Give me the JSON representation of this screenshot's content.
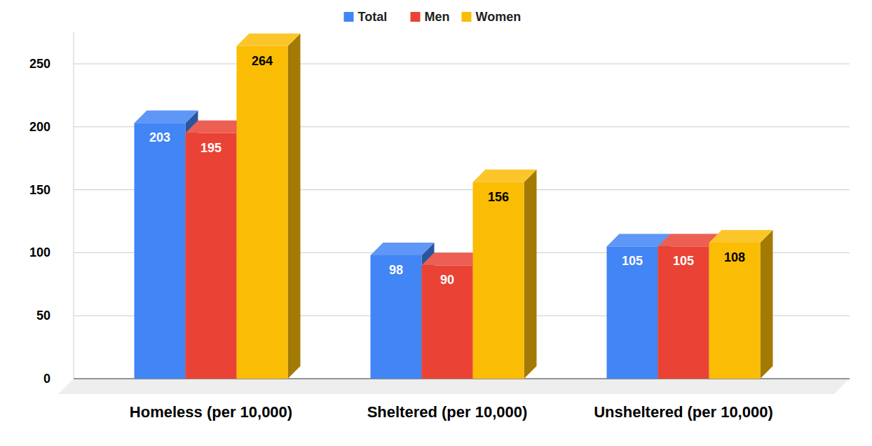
{
  "chart_data": {
    "type": "bar",
    "categories": [
      "Homeless (per 10,000)",
      "Sheltered (per 10,000)",
      "Unsheltered (per 10,000)"
    ],
    "series": [
      {
        "name": "Total",
        "color": "#4285f4",
        "values": [
          203,
          98,
          105
        ]
      },
      {
        "name": "Men",
        "color": "#ea4335",
        "values": [
          195,
          90,
          105
        ]
      },
      {
        "name": "Women",
        "color": "#fbbc04",
        "values": [
          264,
          156,
          108
        ]
      }
    ],
    "ylim": [
      0,
      275
    ],
    "yticks": [
      0,
      50,
      100,
      150,
      200,
      250
    ],
    "grid": true,
    "legend": "top",
    "data_labels": true
  }
}
